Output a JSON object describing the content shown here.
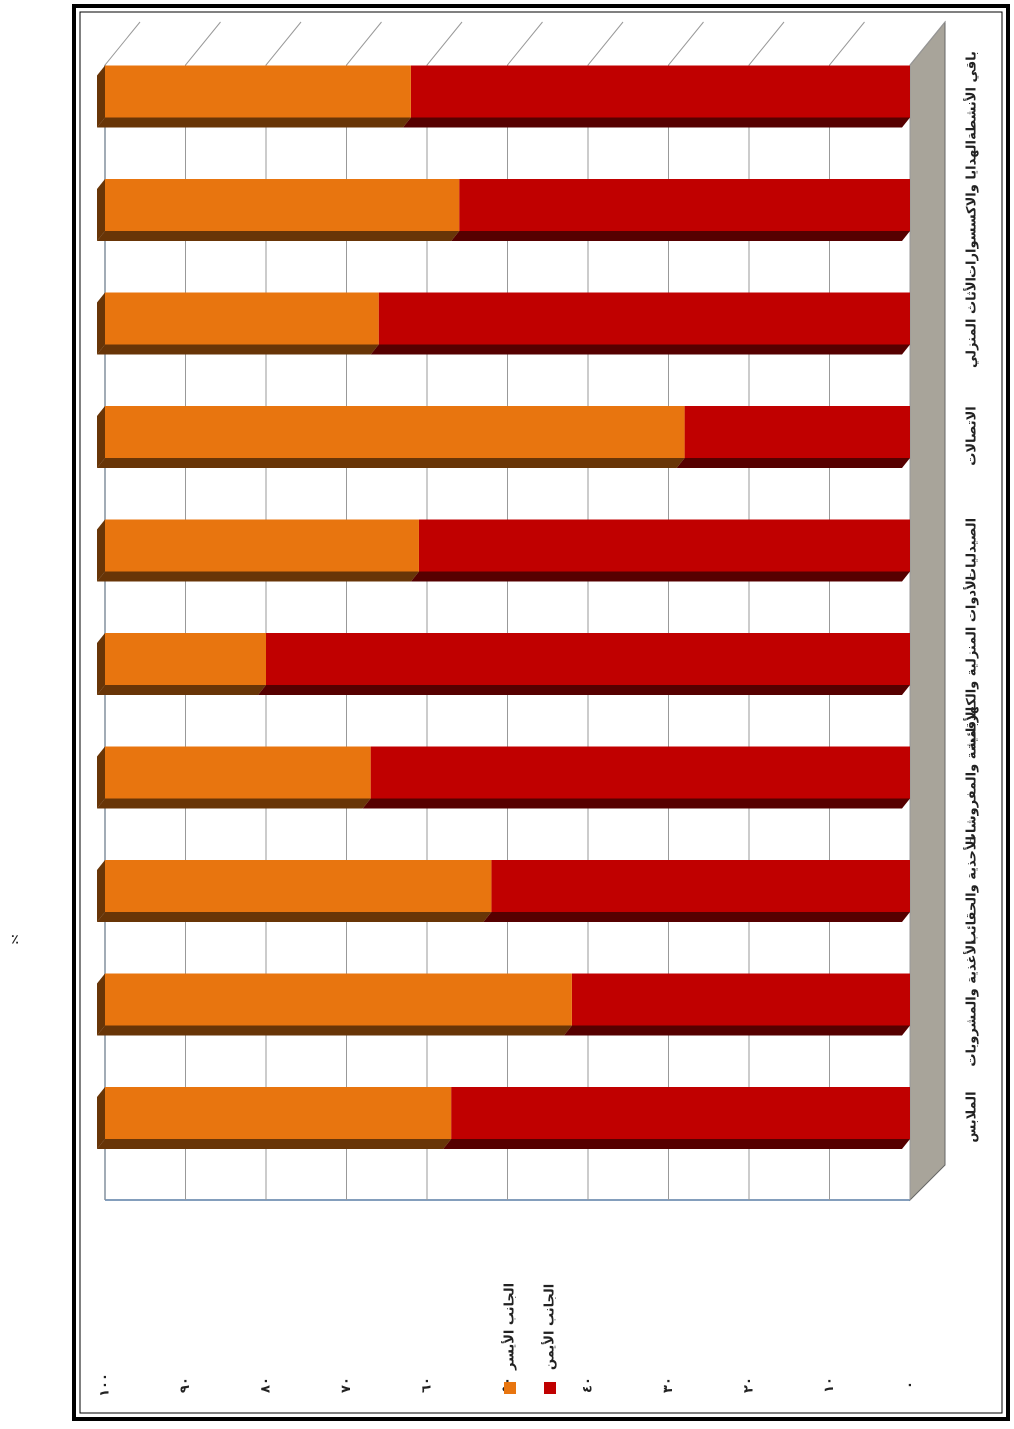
{
  "chart_data": {
    "type": "bar",
    "stacked": true,
    "annotations": [
      "٪",
      "٪"
    ],
    "categories": [
      "الملابس",
      "الأغذية والمشروبات",
      "الأحذية والحقائب",
      "الأقمشة والمفروشات",
      "الأدوات المنزلية والكهربائية",
      "الصيدليات",
      "الاتصالات",
      "الأثاث المنزلي",
      "الهدايا والاكسسوارات",
      "باقي الأنشطة"
    ],
    "series": [
      {
        "name": "الجانب الأيمن",
        "color": "#c00000",
        "values": [
          57,
          42,
          52,
          67,
          80,
          61,
          28,
          66,
          56,
          62
        ]
      },
      {
        "name": "الجانب الأيسر",
        "color": "#e8750f",
        "values": [
          43,
          58,
          48,
          33,
          20,
          39,
          72,
          34,
          44,
          38
        ]
      }
    ],
    "ylim": [
      0,
      100
    ],
    "yticks": [
      {
        "value": 0,
        "label": "٠"
      },
      {
        "value": 10,
        "label": "١٠"
      },
      {
        "value": 20,
        "label": "٢٠"
      },
      {
        "value": 30,
        "label": "٣٠"
      },
      {
        "value": 40,
        "label": "٤٠"
      },
      {
        "value": 50,
        "label": "٥٠"
      },
      {
        "value": 60,
        "label": "٦٠"
      },
      {
        "value": 70,
        "label": "٧٠"
      },
      {
        "value": 80,
        "label": "٨٠"
      },
      {
        "value": 90,
        "label": "٩٠"
      },
      {
        "value": 100,
        "label": "١٠٠"
      }
    ],
    "grid": true,
    "legend": "bottom-left"
  }
}
